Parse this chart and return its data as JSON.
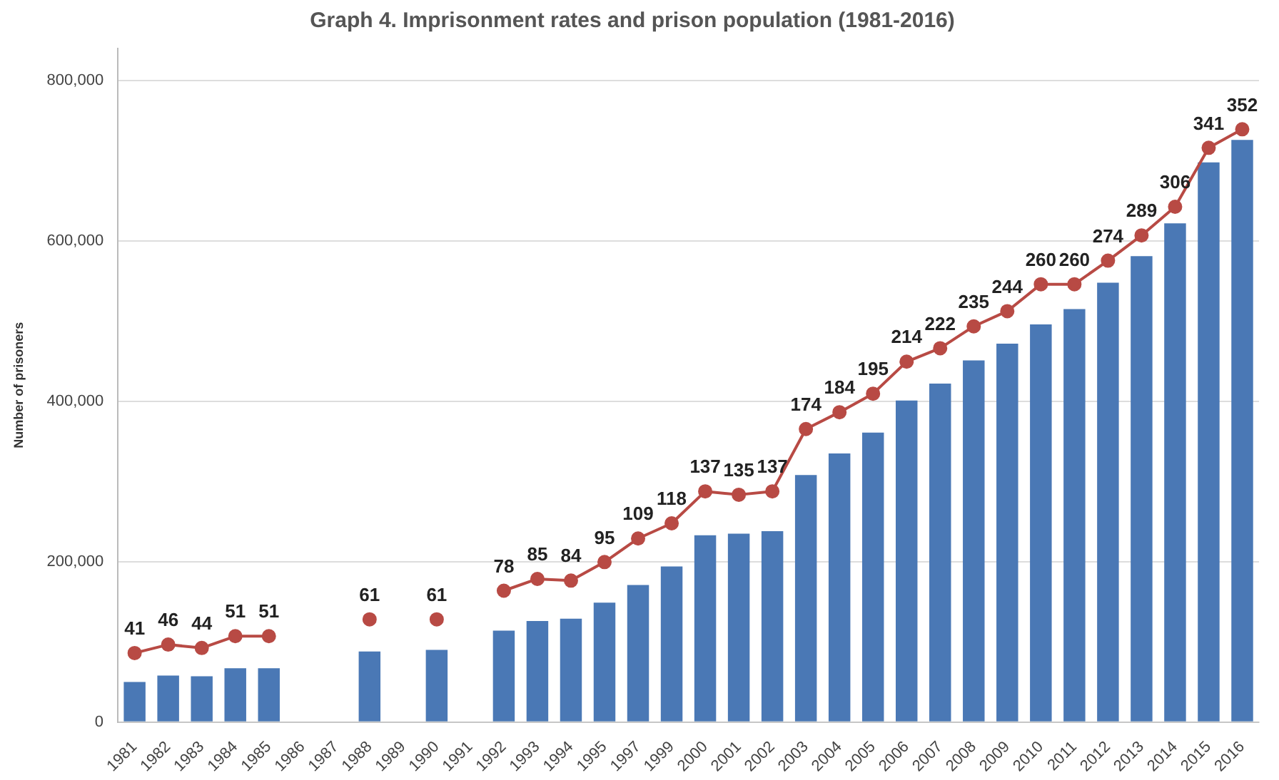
{
  "chart_data": {
    "type": "bar",
    "title": "Graph 4. Imprisonment rates and prison population (1981-2016)",
    "ylabel": "Number of prisoners",
    "categories": [
      "1981",
      "1982",
      "1983",
      "1984",
      "1985",
      "1986",
      "1987",
      "1988",
      "1989",
      "1990",
      "1991",
      "1992",
      "1993",
      "1994",
      "1995",
      "1997",
      "1999",
      "2000",
      "2001",
      "2002",
      "2003",
      "2004",
      "2005",
      "2006",
      "2007",
      "2008",
      "2009",
      "2010",
      "2011",
      "2012",
      "2013",
      "2014",
      "2015",
      "2016"
    ],
    "series": [
      {
        "color": "#4a78b5",
        "values": [
          50000,
          58000,
          57000,
          67000,
          67000,
          null,
          null,
          88000,
          null,
          90000,
          null,
          114000,
          126000,
          129000,
          149000,
          171000,
          194000,
          233000,
          235000,
          238000,
          308000,
          335000,
          361000,
          401000,
          422000,
          451000,
          472000,
          496000,
          515000,
          548000,
          581000,
          622000,
          698000,
          726000
        ]
      },
      {
        "type": "line",
        "axis": "y2",
        "color": "#b84a44",
        "marker": "circle",
        "values": [
          41,
          46,
          44,
          51,
          51,
          null,
          null,
          61,
          null,
          61,
          null,
          78,
          85,
          84,
          95,
          109,
          118,
          137,
          135,
          137,
          174,
          184,
          195,
          214,
          222,
          235,
          244,
          260,
          260,
          274,
          289,
          306,
          341,
          352
        ],
        "value_labels": [
          "41",
          "46",
          "44",
          "51",
          "51",
          null,
          null,
          "61",
          null,
          "61",
          null,
          "78",
          "85",
          "84",
          "95",
          "109",
          "118",
          "137",
          "135",
          "137",
          "174",
          "184",
          "195",
          "214",
          "222",
          "235",
          "244",
          "260",
          "260",
          "274",
          "289",
          "306",
          "341",
          "352"
        ]
      }
    ],
    "ylim": [
      0,
      840000
    ],
    "yticks": [
      {
        "value": 0,
        "label": "0"
      },
      {
        "value": 200000,
        "label": "200,000"
      },
      {
        "value": 400000,
        "label": "400,000"
      },
      {
        "value": 600000,
        "label": "600,000"
      },
      {
        "value": 800000,
        "label": "800,000"
      }
    ],
    "grid": "y",
    "legend": false
  }
}
